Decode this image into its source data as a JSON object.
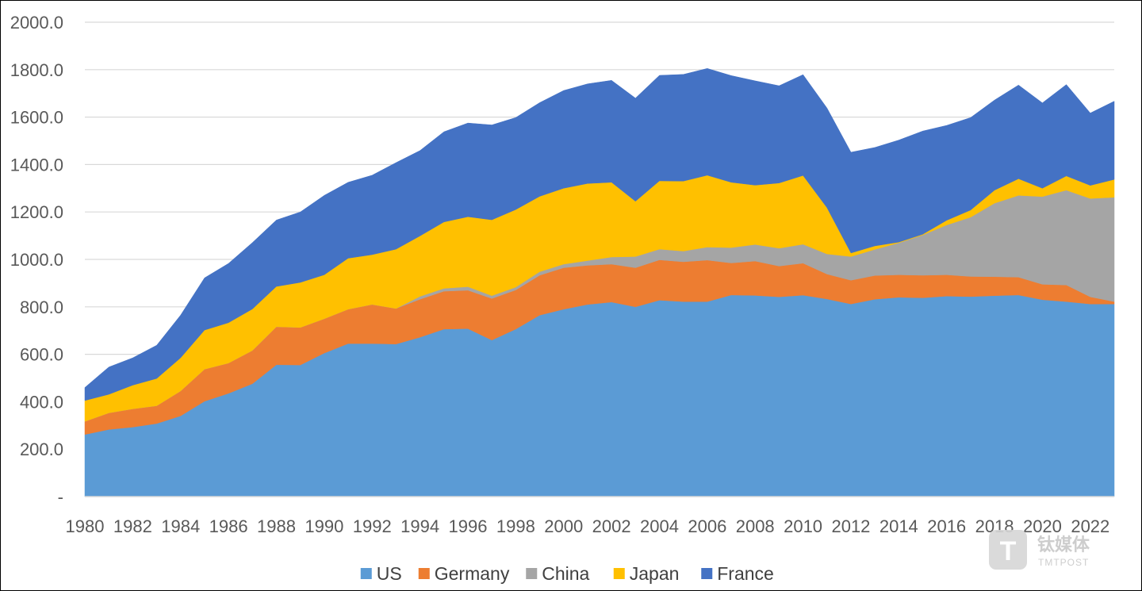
{
  "chart_data": {
    "type": "area",
    "stacked": true,
    "title": "",
    "xlabel": "",
    "ylabel": "",
    "ylim": [
      0,
      2000
    ],
    "grid": true,
    "legend_position": "bottom",
    "x": [
      1980,
      1981,
      1982,
      1983,
      1984,
      1985,
      1986,
      1987,
      1988,
      1989,
      1990,
      1991,
      1992,
      1993,
      1994,
      1995,
      1996,
      1997,
      1998,
      1999,
      2000,
      2001,
      2002,
      2003,
      2004,
      2005,
      2006,
      2007,
      2008,
      2009,
      2010,
      2011,
      2012,
      2013,
      2014,
      2015,
      2016,
      2017,
      2018,
      2019,
      2020,
      2021,
      2022,
      2023
    ],
    "x_tick_labels": [
      "1980",
      "1982",
      "1984",
      "1986",
      "1988",
      "1990",
      "1992",
      "1994",
      "1996",
      "1998",
      "2000",
      "2002",
      "2004",
      "2006",
      "2008",
      "2010",
      "2012",
      "2014",
      "2016",
      "2018",
      "2020",
      "2022"
    ],
    "y_tick_labels": [
      "-",
      "200.0",
      "400.0",
      "600.0",
      "800.0",
      "1000.0",
      "1200.0",
      "1400.0",
      "1600.0",
      "1800.0",
      "2000.0"
    ],
    "series": [
      {
        "name": "US",
        "color": "#5b9bd5",
        "values": [
          262,
          283,
          293,
          308,
          340,
          402,
          435,
          476,
          556,
          555,
          605,
          645,
          645,
          643,
          672,
          706,
          708,
          660,
          706,
          765,
          790,
          810,
          820,
          800,
          828,
          822,
          822,
          850,
          848,
          842,
          849,
          833,
          812,
          832,
          840,
          838,
          845,
          843,
          847,
          850,
          830,
          822,
          812,
          812
        ]
      },
      {
        "name": "Germany",
        "color": "#ed7d31",
        "values": [
          55,
          70,
          77,
          75,
          105,
          135,
          128,
          140,
          160,
          158,
          145,
          145,
          165,
          150,
          160,
          160,
          162,
          175,
          165,
          168,
          175,
          165,
          160,
          165,
          170,
          168,
          175,
          135,
          145,
          130,
          135,
          105,
          100,
          100,
          95,
          95,
          90,
          85,
          80,
          75,
          65,
          70,
          30,
          10
        ]
      },
      {
        "name": "China",
        "color": "#a5a5a5",
        "values": [
          0,
          0,
          0,
          0,
          0,
          0,
          0,
          0,
          0,
          0,
          0,
          0,
          0,
          0,
          12,
          12,
          15,
          12,
          12,
          15,
          15,
          20,
          30,
          47,
          45,
          45,
          55,
          65,
          70,
          75,
          80,
          85,
          100,
          110,
          135,
          170,
          210,
          250,
          310,
          345,
          370,
          400,
          415,
          440
        ]
      },
      {
        "name": "Japan",
        "color": "#ffc000",
        "values": [
          88,
          78,
          100,
          115,
          140,
          165,
          170,
          175,
          170,
          190,
          185,
          215,
          210,
          250,
          255,
          280,
          295,
          320,
          327,
          318,
          320,
          325,
          315,
          233,
          288,
          295,
          303,
          275,
          250,
          275,
          290,
          195,
          15,
          15,
          3,
          3,
          20,
          30,
          55,
          70,
          35,
          60,
          55,
          75
        ]
      },
      {
        "name": "France",
        "color": "#4472c4",
        "values": [
          55,
          115,
          115,
          140,
          180,
          220,
          250,
          280,
          280,
          297,
          335,
          320,
          335,
          365,
          360,
          380,
          395,
          400,
          388,
          395,
          412,
          420,
          430,
          435,
          445,
          450,
          450,
          450,
          440,
          410,
          425,
          420,
          425,
          415,
          430,
          435,
          400,
          390,
          380,
          395,
          360,
          385,
          305,
          330
        ]
      }
    ]
  },
  "watermark": {
    "text_cn": "钛媒体",
    "text_en": "TMTPOST",
    "logo_letter": "T"
  }
}
